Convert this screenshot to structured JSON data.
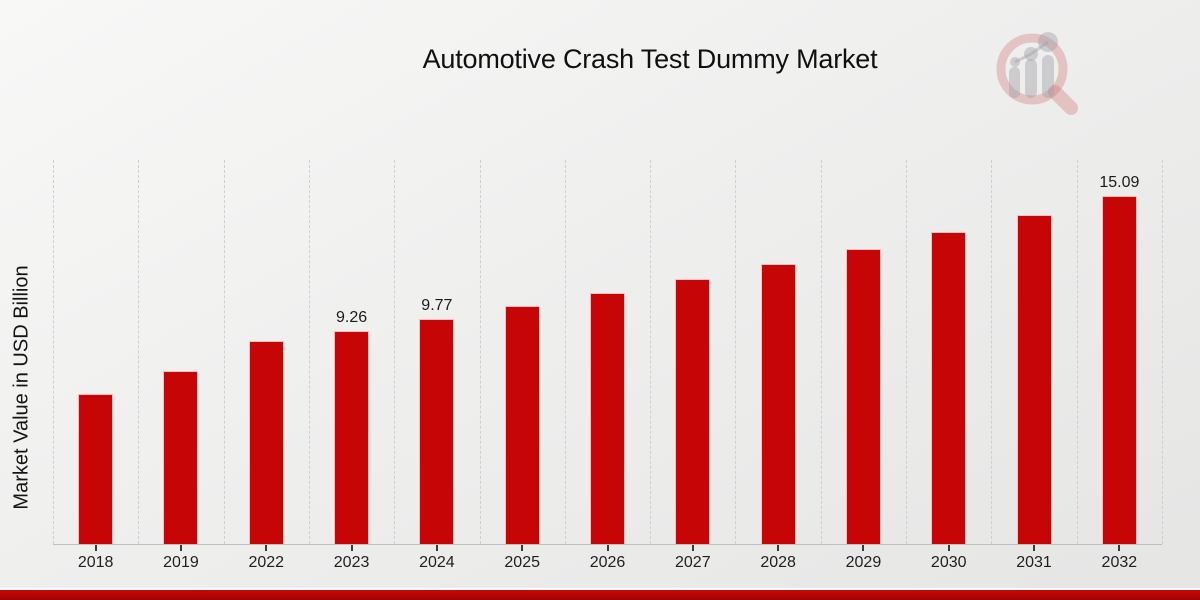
{
  "page": {
    "title": "Automotive Crash Test Dummy Market"
  },
  "chart_data": {
    "type": "bar",
    "title": "Automotive Crash Test Dummy Market",
    "xlabel": "",
    "ylabel": "Market Value in USD Billion",
    "categories": [
      "2018",
      "2019",
      "2022",
      "2023",
      "2024",
      "2025",
      "2026",
      "2027",
      "2028",
      "2029",
      "2030",
      "2031",
      "2032"
    ],
    "values": [
      6.5,
      7.5,
      8.8,
      9.26,
      9.77,
      10.32,
      10.89,
      11.5,
      12.14,
      12.82,
      13.54,
      14.3,
      15.09
    ],
    "data_labels": [
      "",
      "",
      "",
      "9.26",
      "9.77",
      "",
      "",
      "",
      "",
      "",
      "",
      "",
      "15.09"
    ],
    "ylim": [
      0,
      16.67
    ],
    "grid": "vertical-dashed",
    "legend": "none",
    "bar_color": "#c60606"
  },
  "branding": {
    "logo_icon": "magnifier-growth-chart-logo",
    "logo_ring_color": "rgba(204,106,106,0.32)",
    "logo_bar_color": "rgba(158,158,166,0.42)",
    "stripe_color_top": "#c90808",
    "stripe_color_bottom": "#9c0404"
  }
}
